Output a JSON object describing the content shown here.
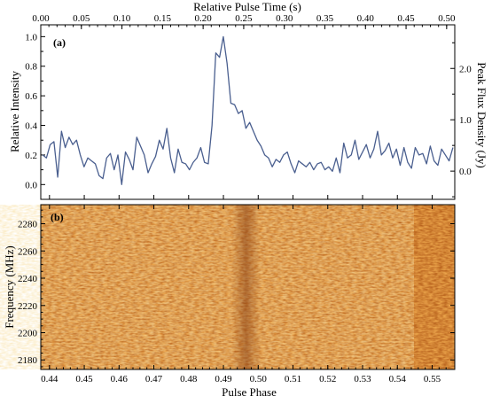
{
  "chart_data": [
    {
      "type": "line",
      "panel_label": "(a)",
      "ylabel": "Relative Intensity",
      "ylabel_right": "Peak Flux Density (Jy)",
      "xlabel_top": "Relative Pulse Time (s)",
      "xlim": [
        0.4375,
        0.5565
      ],
      "ylim": [
        -0.1,
        1.08
      ],
      "y_ticks": [
        "0.0",
        "0.2",
        "0.4",
        "0.6",
        "0.8",
        "1.0"
      ],
      "y_tick_values": [
        0.0,
        0.2,
        0.4,
        0.6,
        0.8,
        1.0
      ],
      "right_ticks": [
        "0.0",
        "1.0",
        "2.0"
      ],
      "right_tick_values": [
        0.0,
        1.0,
        2.0
      ],
      "right_ylim": [
        -0.55,
        2.85
      ],
      "top_ticks": [
        "0.00",
        "0.05",
        "0.10",
        "0.15",
        "0.20",
        "0.25",
        "0.30",
        "0.35",
        "0.40",
        "0.45",
        "0.50"
      ],
      "top_tick_values": [
        0.0,
        0.05,
        0.1,
        0.15,
        0.2,
        0.25,
        0.3,
        0.35,
        0.4,
        0.45,
        0.5
      ],
      "top_xlim": [
        0.0,
        0.51
      ],
      "line_color": "#4a5f8f",
      "series": [
        {
          "values": [
            0.2,
            0.18,
            0.27,
            0.29,
            0.05,
            0.36,
            0.25,
            0.32,
            0.27,
            0.3,
            0.2,
            0.12,
            0.18,
            0.16,
            0.14,
            0.06,
            0.04,
            0.18,
            0.21,
            0.1,
            0.2,
            0.0,
            0.22,
            0.17,
            0.1,
            0.32,
            0.26,
            0.2,
            0.08,
            0.14,
            0.19,
            0.3,
            0.24,
            0.38,
            0.18,
            0.08,
            0.24,
            0.15,
            0.14,
            0.1,
            0.15,
            0.18,
            0.25,
            0.15,
            0.14,
            0.4,
            0.89,
            0.86,
            1.0,
            0.82,
            0.55,
            0.54,
            0.48,
            0.5,
            0.38,
            0.42,
            0.36,
            0.3,
            0.26,
            0.2,
            0.18,
            0.12,
            0.17,
            0.15,
            0.2,
            0.22,
            0.14,
            0.08,
            0.16,
            0.14,
            0.12,
            0.15,
            0.1,
            0.14,
            0.15,
            0.1,
            0.12,
            0.09,
            0.18,
            0.08,
            0.28,
            0.18,
            0.2,
            0.3,
            0.17,
            0.22,
            0.27,
            0.18,
            0.24,
            0.36,
            0.2,
            0.23,
            0.28,
            0.18,
            0.24,
            0.13,
            0.25,
            0.15,
            0.11,
            0.25,
            0.2,
            0.21,
            0.14,
            0.26,
            0.16,
            0.13,
            0.24,
            0.2,
            0.16,
            0.25
          ]
        }
      ]
    },
    {
      "type": "heatmap",
      "panel_label": "(b)",
      "ylabel": "Frequency (MHz)",
      "xlabel": "Pulse Phase",
      "xlim": [
        0.4375,
        0.5565
      ],
      "ylim": [
        2173,
        2294
      ],
      "x_ticks": [
        "0.44",
        "0.45",
        "0.46",
        "0.47",
        "0.48",
        "0.49",
        "0.50",
        "0.51",
        "0.52",
        "0.53",
        "0.54",
        "0.55"
      ],
      "x_tick_values": [
        0.44,
        0.45,
        0.46,
        0.47,
        0.48,
        0.49,
        0.5,
        0.51,
        0.52,
        0.53,
        0.54,
        0.55
      ],
      "y_ticks": [
        "2180",
        "2200",
        "2220",
        "2240",
        "2260",
        "2280"
      ],
      "y_tick_values": [
        2180,
        2200,
        2220,
        2240,
        2260,
        2280
      ],
      "colormap": [
        "#f7dc9e",
        "#efa94e",
        "#d9822b",
        "#a95a1e"
      ],
      "dispersed_pulse_phase": 0.4965
    }
  ]
}
